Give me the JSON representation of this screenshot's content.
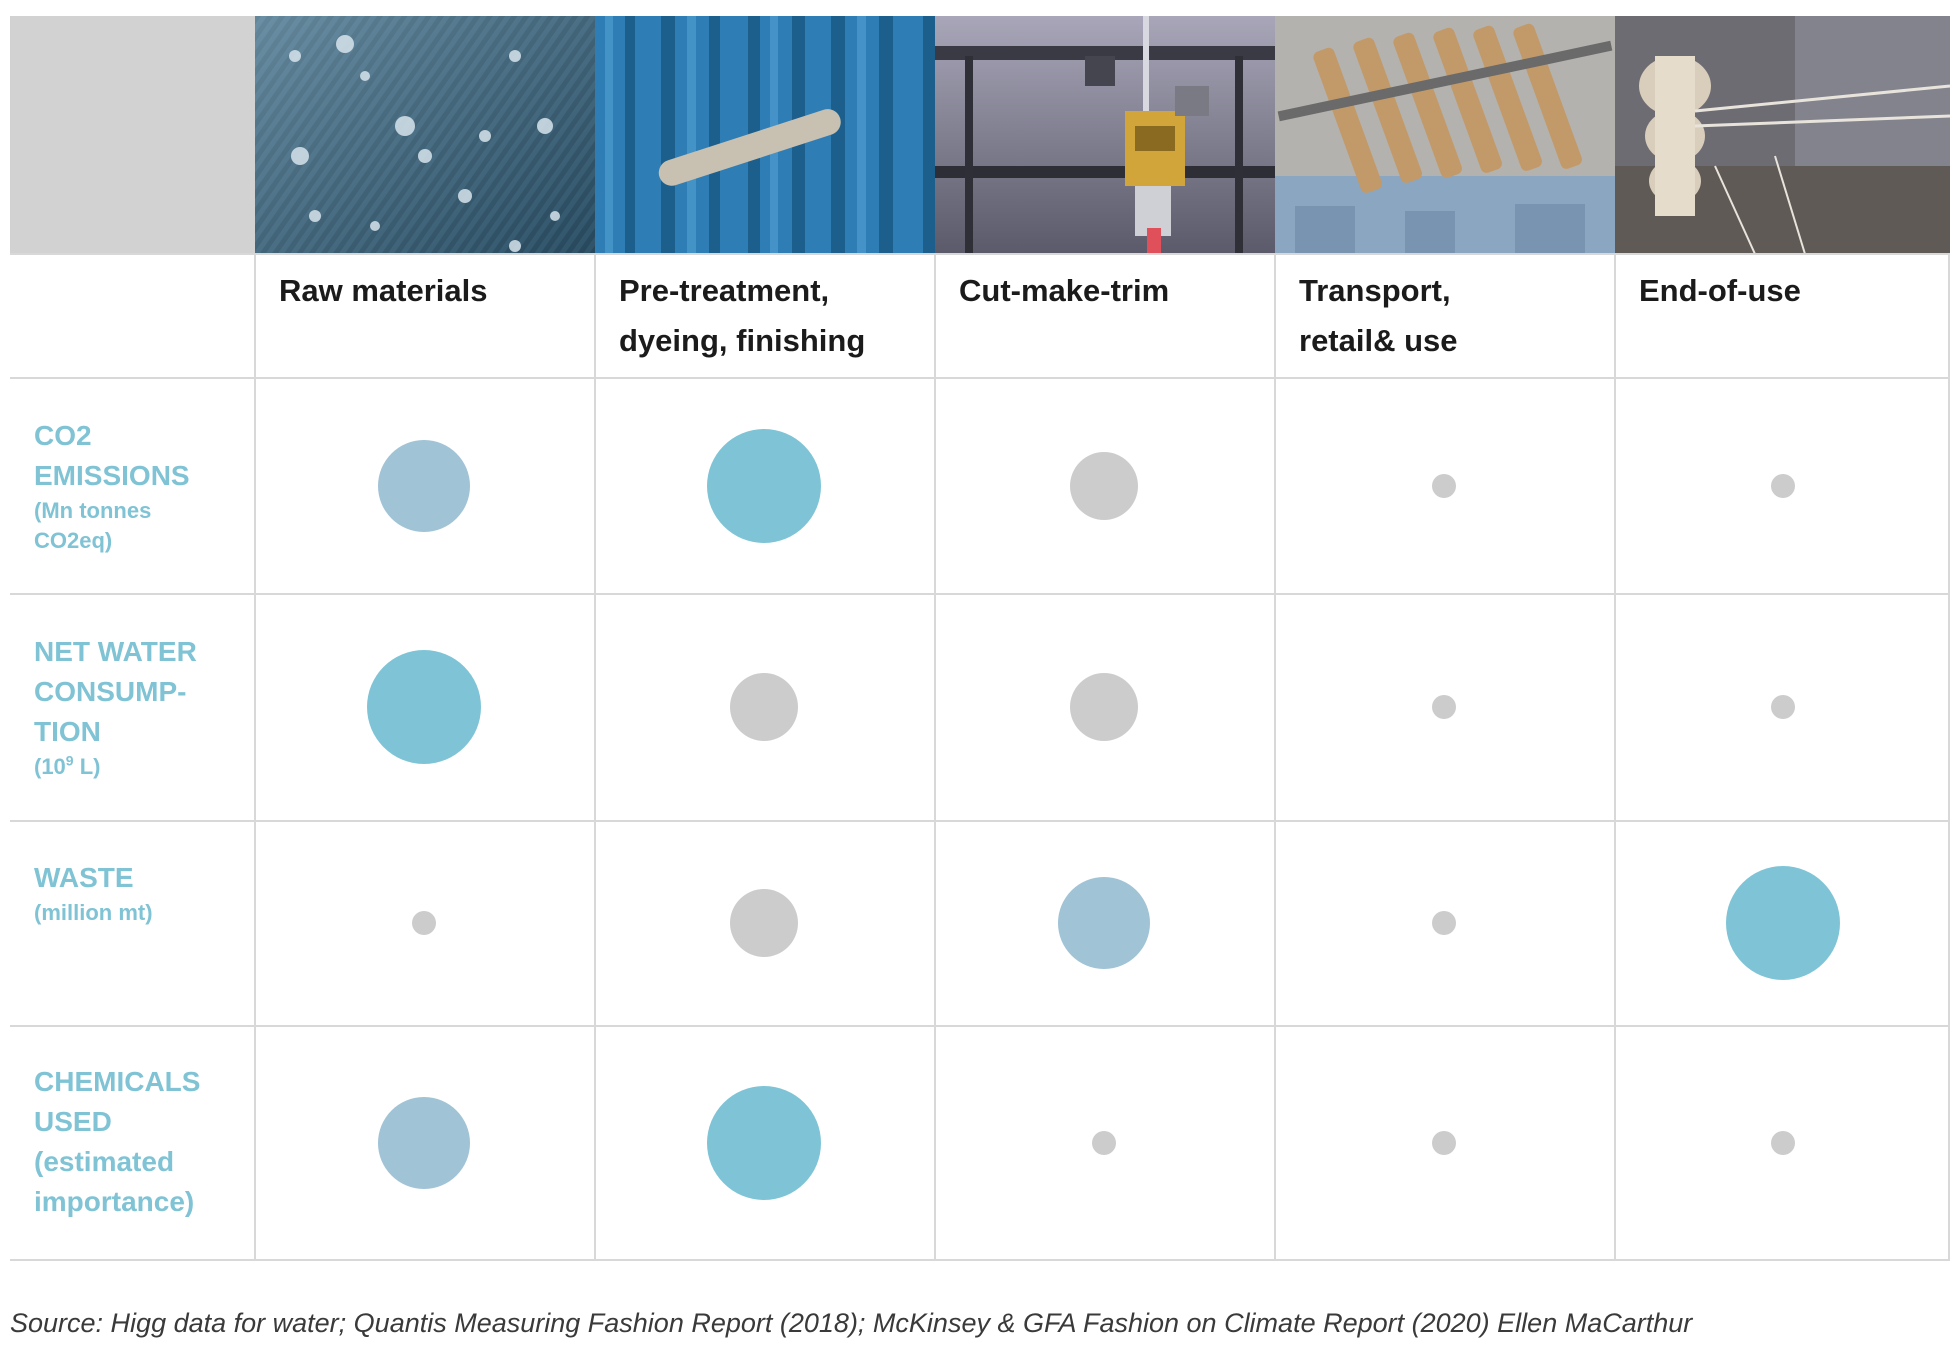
{
  "stages": [
    {
      "label_lines": [
        "Raw materials"
      ],
      "photo": "denim-fabric-with-water-droplets"
    },
    {
      "label_lines": [
        "Pre-treatment,",
        "dyeing, finishing"
      ],
      "photo": "dyed-yarn-hanks-drying"
    },
    {
      "label_lines": [
        "Cut-make-trim"
      ],
      "photo": "cutting-machine"
    },
    {
      "label_lines": [
        "Transport,",
        "retail& use"
      ],
      "photo": "jeans-on-hangers"
    },
    {
      "label_lines": [
        "End-of-use"
      ],
      "photo": "spinning-spool"
    }
  ],
  "rows": [
    {
      "title_lines": [
        "CO2",
        "EMISSIONS"
      ],
      "unit_lines": [
        "(Mn tonnes",
        "CO2eq)"
      ]
    },
    {
      "title_lines": [
        "NET WATER",
        "CONSUMP-",
        "TION"
      ],
      "unit_prefix": "(10",
      "unit_sup": "9",
      "unit_suffix": " L)"
    },
    {
      "title_lines": [
        "WASTE"
      ],
      "unit_lines": [
        "(million mt)"
      ]
    },
    {
      "title_lines": [
        "CHEMICALS",
        "USED"
      ],
      "unit_lines": [
        "(estimated",
        "importance)"
      ]
    }
  ],
  "impact_levels": {
    "high": {
      "diameter": 114,
      "color": "#7fc4d6"
    },
    "medium": {
      "diameter": 92,
      "color": "#a1c3d6"
    },
    "low": {
      "diameter": 68,
      "color": "#cdcccd"
    },
    "minimal": {
      "diameter": 24,
      "color": "#cdcccd"
    }
  },
  "chart_data": {
    "type": "table",
    "columns": [
      "Raw materials",
      "Pre-treatment, dyeing, finishing",
      "Cut-make-trim",
      "Transport, retail& use",
      "End-of-use"
    ],
    "rows": [
      "CO2 EMISSIONS (Mn tonnes CO2eq)",
      "NET WATER CONSUMPTION (10^9 L)",
      "WASTE (million mt)",
      "CHEMICALS USED (estimated importance)"
    ],
    "values": [
      [
        "medium",
        "high",
        "low",
        "minimal",
        "minimal"
      ],
      [
        "high",
        "low",
        "low",
        "minimal",
        "minimal"
      ],
      [
        "minimal",
        "low",
        "medium",
        "minimal",
        "high"
      ],
      [
        "medium",
        "high",
        "minimal",
        "minimal",
        "minimal"
      ]
    ]
  },
  "source_note": "Source: Higg data for water; Quantis Measuring Fashion Report (2018); McKinsey & GFA Fashion on Climate Report (2020) Ellen MaCarthur"
}
